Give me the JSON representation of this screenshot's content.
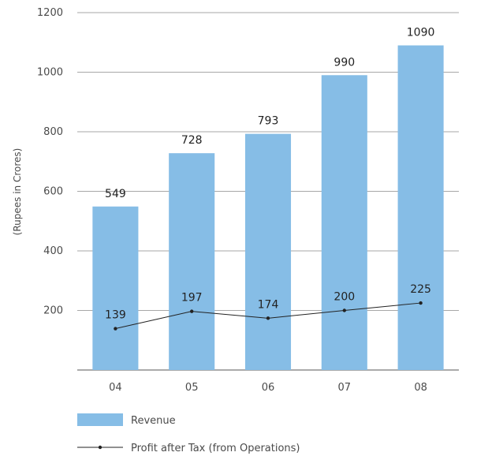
{
  "chart_data": {
    "type": "bar",
    "categories": [
      "04",
      "05",
      "06",
      "07",
      "08"
    ],
    "series": [
      {
        "name": "Revenue",
        "type": "bar",
        "values": [
          549,
          728,
          793,
          990,
          1090
        ],
        "color": "#86bde6"
      },
      {
        "name": "Profit after Tax (from Operations)",
        "type": "line",
        "values": [
          139,
          197,
          174,
          200,
          225
        ],
        "color": "#222222"
      }
    ],
    "ylabel": "(Rupees in Crores)",
    "xlabel": "",
    "ylim": [
      0,
      1200
    ],
    "yticks": [
      200,
      400,
      600,
      800,
      1000,
      1200
    ],
    "grid": true,
    "legend": "bottom-left"
  }
}
